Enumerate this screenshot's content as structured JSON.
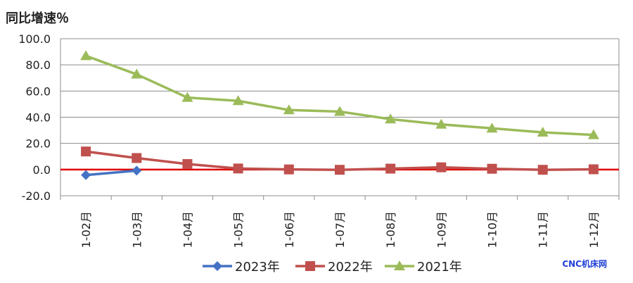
{
  "chart_data": {
    "type": "line",
    "ylabel": "同比增速％",
    "categories": [
      "1-02月",
      "1-03月",
      "1-04月",
      "1-05月",
      "1-06月",
      "1-07月",
      "1-08月",
      "1-09月",
      "1-10月",
      "1-11月",
      "1-12月"
    ],
    "ylim": [
      -20,
      100
    ],
    "yticks": [
      "100.0",
      "80.0",
      "60.0",
      "40.0",
      "20.0",
      "0.0",
      "-20.0"
    ],
    "grid": true,
    "legend_position": "bottom",
    "series": [
      {
        "name": "2023年",
        "color": "#4472c4",
        "marker": "diamond",
        "values": [
          -4.2,
          -0.8,
          null,
          null,
          null,
          null,
          null,
          null,
          null,
          null,
          null
        ]
      },
      {
        "name": "2022年",
        "color": "#c0504d",
        "marker": "square",
        "values": [
          13.8,
          8.8,
          4.2,
          0.8,
          0.1,
          -0.2,
          0.7,
          1.7,
          0.6,
          -0.2,
          0.2
        ]
      },
      {
        "name": "2021年",
        "color": "#9bbb59",
        "marker": "triangle",
        "values": [
          86.9,
          72.8,
          55.0,
          52.5,
          45.5,
          44.3,
          38.5,
          34.5,
          31.5,
          28.4,
          26.5
        ]
      }
    ],
    "zero_line_color": "#e00000"
  },
  "watermark": "CNC机床网"
}
